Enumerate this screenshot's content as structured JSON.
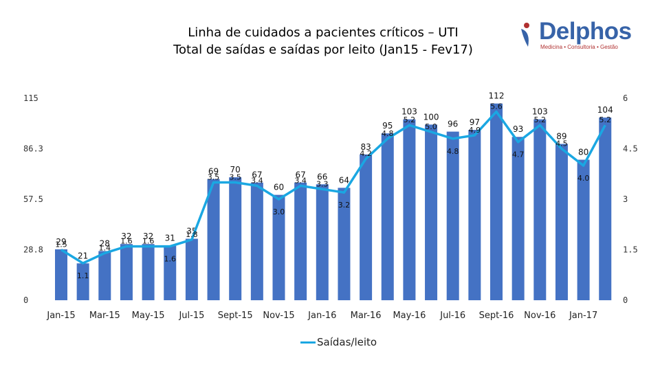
{
  "title_line1": "Linha de cuidados a pacientes críticos – UTI",
  "title_line2": "Total de saídas e saídas por leito (Jan15 - Fev17)",
  "logo": {
    "name": "Delphos",
    "tagline": "Medicina • Consultoria • Gestão"
  },
  "colors": {
    "bar": "#4472c4",
    "line": "#1aa7e2",
    "logo_blue": "#3763a8",
    "logo_red": "#b03030"
  },
  "chart_data": {
    "type": "bar",
    "title": "Total de saídas e saídas por leito (Jan15 - Fev17)",
    "categories": [
      "Jan-15",
      "Feb-15",
      "Mar-15",
      "Apr-15",
      "May-15",
      "Jun-15",
      "Jul-15",
      "Aug-15",
      "Sept-15",
      "Oct-15",
      "Nov-15",
      "Dec-15",
      "Jan-16",
      "Feb-16",
      "Mar-16",
      "Apr-16",
      "May-16",
      "Jun-16",
      "Jul-16",
      "Aug-16",
      "Sept-16",
      "Oct-16",
      "Nov-16",
      "Dec-16",
      "Jan-17",
      "Feb-17"
    ],
    "x_tick_labels": [
      "Jan-15",
      "",
      "Mar-15",
      "",
      "May-15",
      "",
      "Jul-15",
      "",
      "Sept-15",
      "",
      "Nov-15",
      "",
      "Jan-16",
      "",
      "Mar-16",
      "",
      "May-16",
      "",
      "Jul-16",
      "",
      "Sept-16",
      "",
      "Nov-16",
      "",
      "Jan-17",
      ""
    ],
    "series": [
      {
        "name": "Total de saídas",
        "axis": "left",
        "type": "bar",
        "values": [
          29,
          21,
          28,
          32,
          32,
          31,
          35,
          69,
          70,
          67,
          60,
          67,
          66,
          64,
          83,
          95,
          103,
          100,
          96,
          97,
          112,
          93,
          103,
          89,
          80,
          104
        ],
        "labels": [
          "29",
          "21",
          "28",
          "32",
          "32",
          "31",
          "35",
          "69",
          "70",
          "67",
          "60",
          "67",
          "66",
          "64",
          "83",
          "95",
          "103",
          "100",
          "96",
          "97",
          "112",
          "93",
          "103",
          "89",
          "80",
          "104"
        ]
      },
      {
        "name": "Saídas/leito",
        "axis": "right",
        "type": "line",
        "values": [
          1.5,
          1.1,
          1.4,
          1.6,
          1.6,
          1.6,
          1.8,
          3.5,
          3.5,
          3.4,
          3.0,
          3.4,
          3.3,
          3.2,
          4.2,
          4.8,
          5.2,
          5.0,
          4.8,
          4.9,
          5.6,
          4.7,
          5.2,
          4.5,
          4.0,
          5.2
        ],
        "labels": [
          "1.5",
          "1.1",
          "1.4",
          "1.6",
          "1.6",
          "1.6",
          "1.8",
          "3.5",
          "3.5",
          "3.4",
          "3.0",
          "3.4",
          "3.3",
          "3.2",
          "4.2",
          "4.8",
          "5.2",
          "5.0",
          "4.8",
          "4.9",
          "5.6",
          "4.7",
          "5.2",
          "4.5",
          "4.0",
          "5.2"
        ]
      }
    ],
    "y_left": {
      "min": 0,
      "max": 115,
      "ticks": [
        "0",
        "28.8",
        "57.5",
        "86.3",
        "115"
      ]
    },
    "y_right": {
      "min": 0,
      "max": 6,
      "ticks": [
        "0",
        "1.5",
        "3",
        "4.5",
        "6"
      ]
    },
    "legend": {
      "position": "bottom",
      "label": "Saídas/leito"
    }
  }
}
